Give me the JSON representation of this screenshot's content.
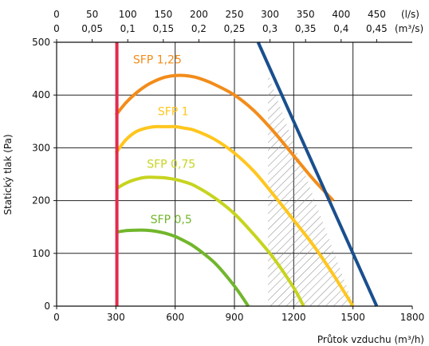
{
  "chart_data": {
    "type": "line",
    "xlabel": "Průtok vzduchu (m³/h)",
    "ylabel": "Statický tlak (Pa)",
    "xlim": [
      0,
      1800
    ],
    "ylim": [
      0,
      500
    ],
    "x_ticks": [
      0,
      300,
      600,
      900,
      1200,
      1500,
      1800
    ],
    "y_ticks": [
      0,
      100,
      200,
      300,
      400,
      500
    ],
    "grid": true,
    "top_axis_ls": {
      "unit_label": "(l/s)",
      "ticks": [
        {
          "label": "0",
          "m3h": 0
        },
        {
          "label": "50",
          "m3h": 180
        },
        {
          "label": "100",
          "m3h": 360
        },
        {
          "label": "150",
          "m3h": 540
        },
        {
          "label": "200",
          "m3h": 720
        },
        {
          "label": "250",
          "m3h": 900
        },
        {
          "label": "300",
          "m3h": 1080
        },
        {
          "label": "350",
          "m3h": 1260
        },
        {
          "label": "400",
          "m3h": 1440
        },
        {
          "label": "450",
          "m3h": 1620
        }
      ]
    },
    "top_axis_m3s": {
      "unit_label": "(m³/s)",
      "ticks": [
        {
          "label": "0",
          "m3h": 0
        },
        {
          "label": "0,05",
          "m3h": 180
        },
        {
          "label": "0,1",
          "m3h": 360
        },
        {
          "label": "0,15",
          "m3h": 540
        },
        {
          "label": "0,2",
          "m3h": 720
        },
        {
          "label": "0,25",
          "m3h": 900
        },
        {
          "label": "0,3",
          "m3h": 1080
        },
        {
          "label": "0,35",
          "m3h": 1260
        },
        {
          "label": "0,4",
          "m3h": 1440
        },
        {
          "label": "0,45",
          "m3h": 1620
        }
      ]
    },
    "series": [
      {
        "label": "SFP 1,25",
        "color": "#f28c1a",
        "label_at": [
          510,
          460
        ],
        "x": [
          300,
          350,
          400,
          450,
          500,
          550,
          600,
          650,
          700,
          750,
          800,
          900,
          1000,
          1100,
          1200,
          1300,
          1400
        ],
        "y": [
          362,
          385,
          403,
          417,
          427,
          434,
          437,
          437,
          434,
          428,
          420,
          400,
          370,
          330,
          285,
          240,
          200
        ]
      },
      {
        "label": "SFP 1",
        "color": "#ffc61e",
        "label_at": [
          590,
          362
        ],
        "x": [
          300,
          350,
          400,
          450,
          500,
          550,
          600,
          650,
          700,
          800,
          900,
          1000,
          1100,
          1200,
          1300,
          1400,
          1500
        ],
        "y": [
          290,
          315,
          330,
          337,
          340,
          340,
          340,
          337,
          333,
          316,
          290,
          255,
          210,
          163,
          115,
          60,
          0
        ]
      },
      {
        "label": "SFP 0,75",
        "color": "#c7d41f",
        "label_at": [
          580,
          262
        ],
        "x": [
          300,
          350,
          400,
          450,
          500,
          550,
          600,
          650,
          700,
          800,
          900,
          1000,
          1100,
          1200,
          1250
        ],
        "y": [
          222,
          233,
          240,
          244,
          244,
          243,
          240,
          235,
          228,
          205,
          175,
          135,
          90,
          35,
          0
        ]
      },
      {
        "label": "SFP 0,5",
        "color": "#71b62c",
        "label_at": [
          580,
          157
        ],
        "x": [
          300,
          350,
          400,
          450,
          500,
          550,
          600,
          650,
          700,
          800,
          900,
          970
        ],
        "y": [
          140,
          143,
          144,
          144,
          142,
          138,
          132,
          123,
          112,
          82,
          38,
          0
        ]
      },
      {
        "label": "",
        "color": "#e32a4d",
        "x": [
          305,
          305
        ],
        "y": [
          0,
          500
        ]
      },
      {
        "label": "",
        "color": "#1a4f8e",
        "x": [
          1020,
          1620
        ],
        "y": [
          500,
          0
        ]
      }
    ],
    "hatched_region": {
      "polygon": [
        [
          1070,
          0
        ],
        [
          1070,
          440
        ],
        [
          1505,
          0
        ]
      ]
    }
  }
}
